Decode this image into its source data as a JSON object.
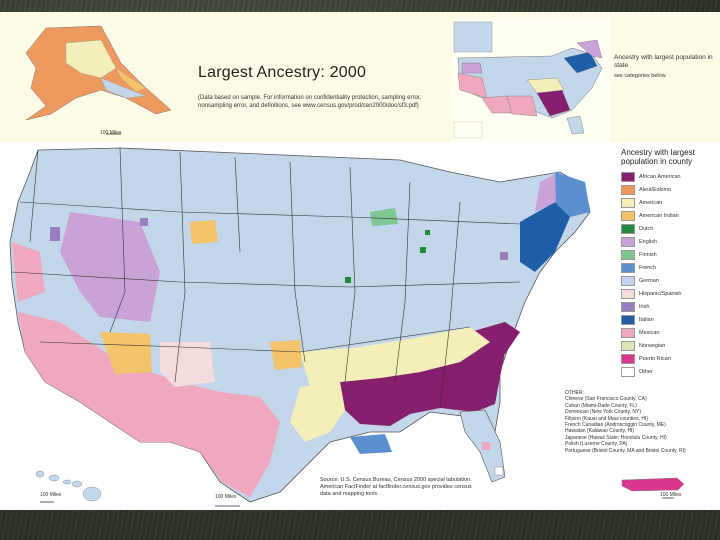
{
  "title": "Largest Ancestry: 2000",
  "note": "(Data based on sample. For information on confidentiality protection, sampling error, nonsampling error, and definitions, see www.census.gov/prod/cen2000/doc/sf3.pdf)",
  "alaska_scale": "100 Miles",
  "state_legend": {
    "title": "Ancestry with largest population in state",
    "subtitle": "see categories below"
  },
  "county_legend": {
    "title": "Ancestry with largest population in county",
    "items": [
      {
        "label": "African American",
        "color": "#86206e"
      },
      {
        "label": "Aleut/Eskimo",
        "color": "#ee9a5e"
      },
      {
        "label": "American",
        "color": "#f4efb8"
      },
      {
        "label": "American Indian",
        "color": "#f4c46a"
      },
      {
        "label": "Dutch",
        "color": "#1f8a3c"
      },
      {
        "label": "English",
        "color": "#c9a2d8"
      },
      {
        "label": "Finnish",
        "color": "#7fc795"
      },
      {
        "label": "French",
        "color": "#5a8fd0"
      },
      {
        "label": "German",
        "color": "#c3d6ea"
      },
      {
        "label": "Hispanic/Spanish",
        "color": "#f3dcdc"
      },
      {
        "label": "Irish",
        "color": "#9a7fc0"
      },
      {
        "label": "Italian",
        "color": "#1e5ea6"
      },
      {
        "label": "Mexican",
        "color": "#efa8bd"
      },
      {
        "label": "Norwegian",
        "color": "#dbe6b2"
      },
      {
        "label": "Puerto Rican",
        "color": "#d9388e"
      },
      {
        "label": "Other",
        "color": "#ffffff"
      }
    ]
  },
  "other": {
    "heading": "OTHER:",
    "lines": [
      "Chinese (San Francisco County, CA)",
      "Cuban (Miami-Dade County, FL)",
      "Dominican (New York County, NY)",
      "Filipino (Kauai and Maui counties, HI)",
      "French Canadian (Androscoggin County, ME)",
      "Hawaiian (Kalawao County, HI)",
      "Japanese (Hawaii State; Honolulu County, HI)",
      "Polish (Luzerne County, PA)",
      "Portuguese (Bristol County, MA and Bristol County, RI)"
    ]
  },
  "source": "Source: U.S. Census Bureau, Census 2000 special tabulation. American FactFinder at factfinder.census.gov provides census data and mapping tools.",
  "scales": {
    "hawaii": "100 Miles",
    "main": "100 Miles",
    "puerto_rico": "100 Miles"
  }
}
